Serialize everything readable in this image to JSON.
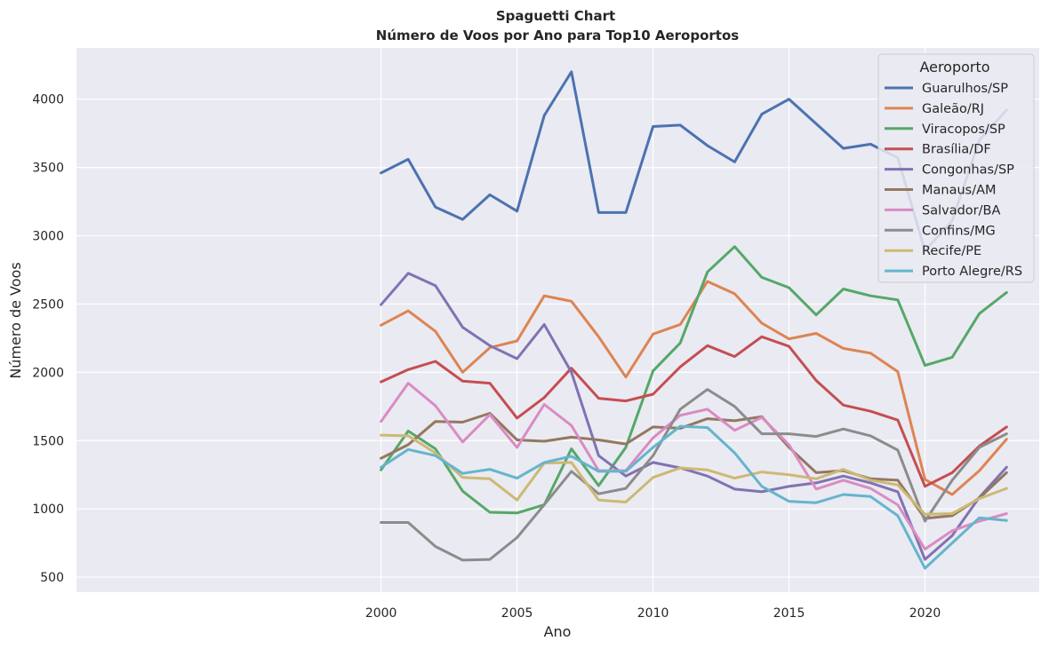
{
  "chart_data": {
    "type": "line",
    "title": "Spaguetti Chart",
    "subtitle": "Número de Voos por Ano para Top10 Aeroportos",
    "xlabel": "Ano",
    "ylabel": "Número de Voos",
    "xlim": [
      1988.8,
      2024.2
    ],
    "ylim": [
      390,
      4375
    ],
    "xticks": [
      2000,
      2005,
      2010,
      2015,
      2020
    ],
    "yticks": [
      500,
      1000,
      1500,
      2000,
      2500,
      3000,
      3500,
      4000
    ],
    "grid": true,
    "legend": {
      "title": "Aeroporto",
      "position": "top-right"
    },
    "x": [
      2000,
      2001,
      2002,
      2003,
      2004,
      2005,
      2006,
      2007,
      2008,
      2009,
      2010,
      2011,
      2012,
      2013,
      2014,
      2015,
      2016,
      2017,
      2018,
      2019,
      2020,
      2021,
      2022,
      2023
    ],
    "series": [
      {
        "name": "Guarulhos/SP",
        "color": "#4c72b0",
        "values": [
          3460,
          3560,
          3210,
          3120,
          3300,
          3180,
          3880,
          4200,
          3170,
          3170,
          3800,
          3810,
          3660,
          3540,
          3890,
          4000,
          3820,
          3640,
          3670,
          3570,
          2890,
          3110,
          3700,
          3920
        ]
      },
      {
        "name": "Galeão/RJ",
        "color": "#dd8452",
        "values": [
          2345,
          2450,
          2300,
          2000,
          2180,
          2230,
          2560,
          2520,
          2260,
          1965,
          2280,
          2350,
          2665,
          2575,
          2360,
          2245,
          2285,
          2175,
          2140,
          2005,
          1215,
          1105,
          1280,
          1510
        ]
      },
      {
        "name": "Viracopos/SP",
        "color": "#55a868",
        "values": [
          1285,
          1570,
          1440,
          1130,
          975,
          970,
          1030,
          1440,
          1170,
          1450,
          2010,
          2215,
          2735,
          2920,
          2695,
          2620,
          2420,
          2610,
          2560,
          2530,
          2050,
          2110,
          2430,
          2585
        ]
      },
      {
        "name": "Brasília/DF",
        "color": "#c44e52",
        "values": [
          1930,
          2020,
          2080,
          1935,
          1920,
          1665,
          1815,
          2030,
          1810,
          1790,
          1840,
          2040,
          2195,
          2115,
          2260,
          2190,
          1940,
          1760,
          1715,
          1650,
          1165,
          1265,
          1460,
          1600
        ]
      },
      {
        "name": "Congonhas/SP",
        "color": "#8172b3",
        "values": [
          2495,
          2725,
          2635,
          2330,
          2195,
          2100,
          2350,
          2000,
          1390,
          1240,
          1340,
          1300,
          1240,
          1145,
          1125,
          1165,
          1190,
          1240,
          1190,
          1125,
          630,
          805,
          1085,
          1305
        ]
      },
      {
        "name": "Manaus/AM",
        "color": "#937860",
        "values": [
          1370,
          1470,
          1640,
          1635,
          1700,
          1505,
          1495,
          1525,
          1505,
          1475,
          1600,
          1590,
          1660,
          1645,
          1675,
          1450,
          1265,
          1280,
          1220,
          1210,
          930,
          950,
          1080,
          1265
        ]
      },
      {
        "name": "Salvador/BA",
        "color": "#da8bc3",
        "values": [
          1640,
          1920,
          1755,
          1490,
          1690,
          1450,
          1765,
          1610,
          1280,
          1280,
          1520,
          1685,
          1730,
          1575,
          1670,
          1470,
          1145,
          1210,
          1150,
          1030,
          705,
          840,
          910,
          965
        ]
      },
      {
        "name": "Confins/MG",
        "color": "#8c8c8c",
        "values": [
          900,
          900,
          725,
          625,
          630,
          790,
          1030,
          1275,
          1110,
          1150,
          1390,
          1730,
          1875,
          1750,
          1550,
          1550,
          1530,
          1585,
          1535,
          1430,
          910,
          1210,
          1450,
          1550
        ]
      },
      {
        "name": "Recife/PE",
        "color": "#ccb974",
        "values": [
          1540,
          1535,
          1410,
          1230,
          1220,
          1065,
          1335,
          1340,
          1065,
          1050,
          1230,
          1300,
          1285,
          1225,
          1270,
          1250,
          1220,
          1290,
          1210,
          1175,
          960,
          965,
          1075,
          1150
        ]
      },
      {
        "name": "Porto Alegre/RS",
        "color": "#64b5cd",
        "values": [
          1305,
          1435,
          1390,
          1260,
          1290,
          1225,
          1340,
          1385,
          1275,
          1275,
          1450,
          1605,
          1595,
          1410,
          1165,
          1055,
          1045,
          1105,
          1090,
          950,
          565,
          750,
          935,
          915
        ]
      }
    ]
  }
}
